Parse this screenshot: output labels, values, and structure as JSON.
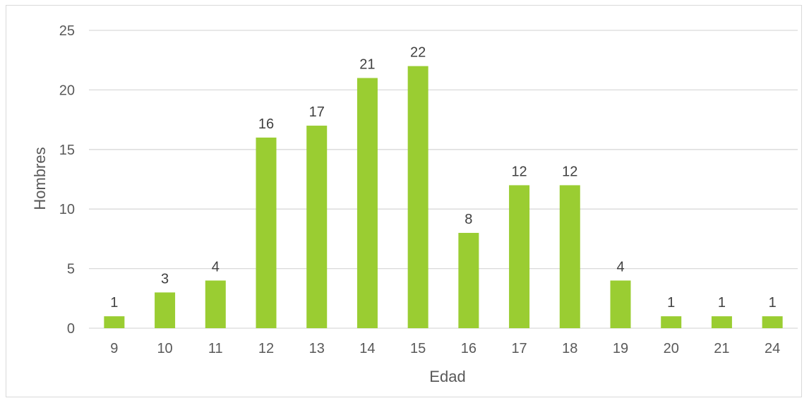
{
  "chart_data": {
    "type": "bar",
    "categories": [
      "9",
      "10",
      "11",
      "12",
      "13",
      "14",
      "15",
      "16",
      "17",
      "18",
      "19",
      "20",
      "21",
      "24"
    ],
    "values": [
      1,
      3,
      4,
      16,
      17,
      21,
      22,
      8,
      12,
      12,
      4,
      1,
      1,
      1
    ],
    "xlabel": "Edad",
    "ylabel": "Hombres",
    "ylim": [
      0,
      25
    ],
    "yticks": [
      0,
      5,
      10,
      15,
      20,
      25
    ],
    "bar_color": "#9acd32",
    "grid": true,
    "data_labels": true
  }
}
